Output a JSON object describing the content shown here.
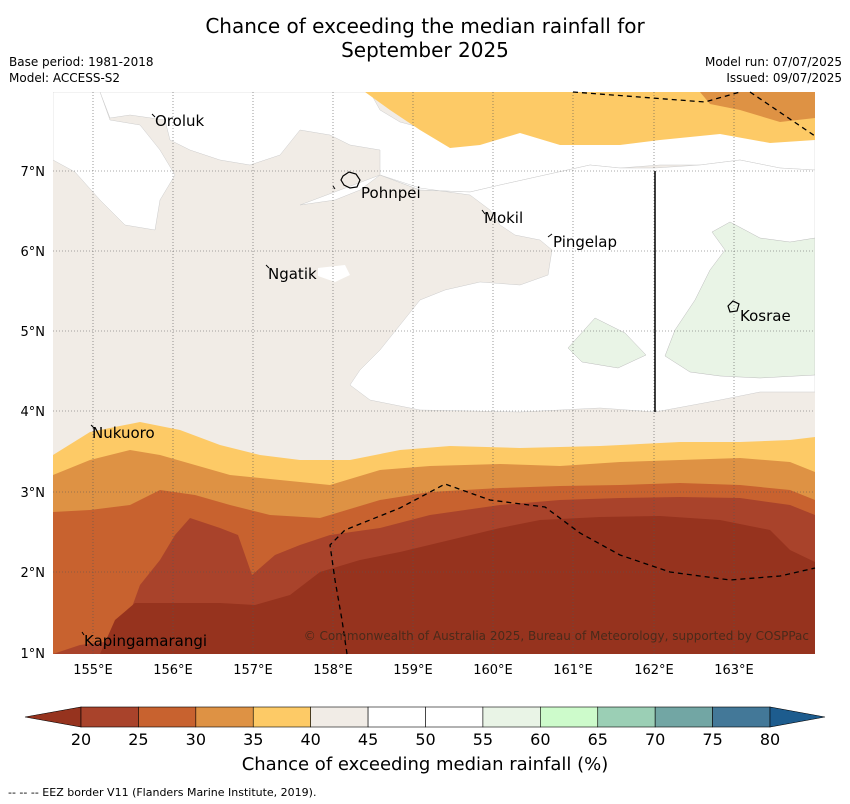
{
  "title_line1": "Chance of exceeding the median rainfall for",
  "title_line2": "September 2025",
  "meta": {
    "base_period": "Base period: 1981-2018",
    "model": "Model: ACCESS-S2",
    "model_run": "Model run: 07/07/2025",
    "issued": "Issued: 09/07/2025"
  },
  "axes": {
    "lon_ticks": [
      "155°E",
      "156°E",
      "157°E",
      "158°E",
      "159°E",
      "160°E",
      "161°E",
      "162°E",
      "163°E"
    ],
    "lat_ticks": [
      "1°N",
      "2°N",
      "3°N",
      "4°N",
      "5°N",
      "6°N",
      "7°N"
    ]
  },
  "places": [
    "Oroluk",
    "Pohnpei",
    "Mokil",
    "Pingelap",
    "Ngatik",
    "Kosrae",
    "Nukuoro",
    "Kapingamarangi"
  ],
  "copyright": "© Commonwealth of Australia 2025, Bureau of Meteorology, supported by COSPPac",
  "colorbar": {
    "ticks": [
      "20",
      "25",
      "30",
      "35",
      "40",
      "45",
      "50",
      "55",
      "60",
      "65",
      "70",
      "75",
      "80"
    ],
    "title": "Chance of exceeding median rainfall (%)",
    "colors": [
      "#a9432b",
      "#c8622f",
      "#de9244",
      "#fdca66",
      "#f1ece6",
      "#ffffff",
      "#ffffff",
      "#e9f4e6",
      "#cdfbcb",
      "#9bcfb5",
      "#72a6a4",
      "#437898"
    ],
    "under_color": "#96331e",
    "over_color": "#1d5c8e"
  },
  "footnote": "-- -- -- EEZ border V11 (Flanders Marine Institute, 2019)."
}
